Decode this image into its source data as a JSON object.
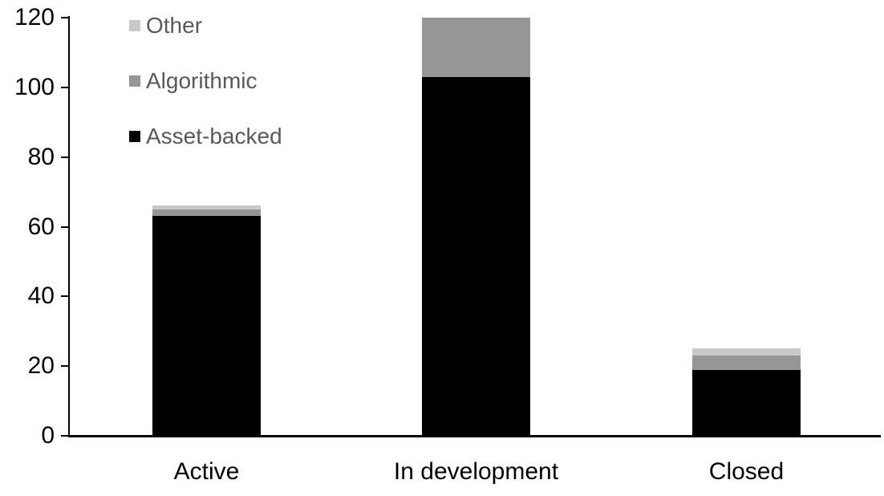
{
  "colors": {
    "asset_backed": "#000000",
    "algorithmic": "#969696",
    "other": "#C9C9C9",
    "legend_text": "#595959",
    "axis": "#000000",
    "background": "#FFFFFF"
  },
  "legend": {
    "items": [
      {
        "label": "Other",
        "color": "#C9C9C9"
      },
      {
        "label": "Algorithmic",
        "color": "#969696"
      },
      {
        "label": "Asset-backed",
        "color": "#000000"
      }
    ]
  },
  "chart_data": {
    "type": "bar",
    "stacked": true,
    "title": "",
    "xlabel": "",
    "ylabel": "",
    "categories": [
      "Active",
      "In development",
      "Closed"
    ],
    "series": [
      {
        "name": "Asset-backed",
        "color": "#000000",
        "values": [
          63,
          103,
          19
        ]
      },
      {
        "name": "Algorithmic",
        "color": "#969696",
        "values": [
          2,
          17,
          4
        ]
      },
      {
        "name": "Other",
        "color": "#C9C9C9",
        "values": [
          1,
          0,
          2
        ]
      }
    ],
    "totals": [
      66,
      120,
      25
    ],
    "ylim": [
      0,
      120
    ],
    "yticks": [
      0,
      20,
      40,
      60,
      80,
      100,
      120
    ],
    "grid": false,
    "legend_position": "top-left"
  }
}
